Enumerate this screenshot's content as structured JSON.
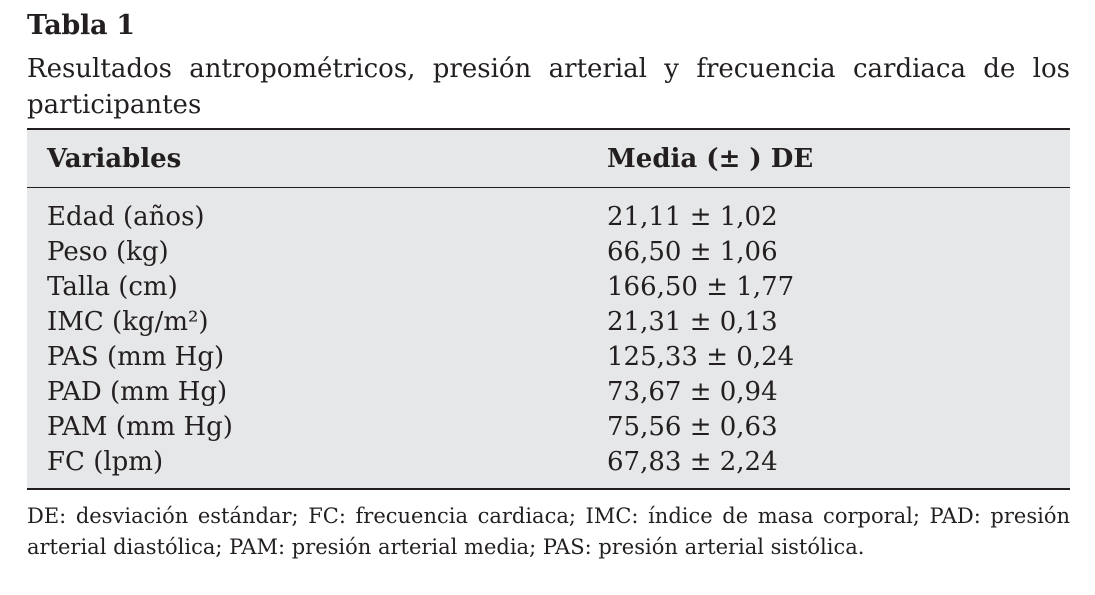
{
  "table_label": "Tabla 1",
  "caption": "Resultados antropométricos, presión arterial y frecuencia cardiaca de los participantes",
  "headers": {
    "variable": "Variables",
    "value": "Media (± ) DE"
  },
  "rows": [
    {
      "variable": "Edad (años)",
      "value": "21,11 ±  1,02"
    },
    {
      "variable": "Peso (kg)",
      "value": "66,50 ±  1,06"
    },
    {
      "variable": "Talla (cm)",
      "value": "166,50 ±  1,77"
    },
    {
      "variable": "IMC (kg/m²)",
      "value": "21,31 ±  0,13"
    },
    {
      "variable": "PAS (mm Hg)",
      "value": "125,33 ±  0,24"
    },
    {
      "variable": "PAD (mm Hg)",
      "value": "73,67 ±  0,94"
    },
    {
      "variable": "PAM (mm Hg)",
      "value": "75,56 ±  0,63"
    },
    {
      "variable": "FC (lpm)",
      "value": "67,83 ±  2,24"
    }
  ],
  "footnote": "DE: desviación estándar; FC: frecuencia cardiaca; IMC: índice de masa corporal; PAD: pre­sión arterial diastólica; PAM: presión arterial media; PAS: presión arterial sistólica."
}
